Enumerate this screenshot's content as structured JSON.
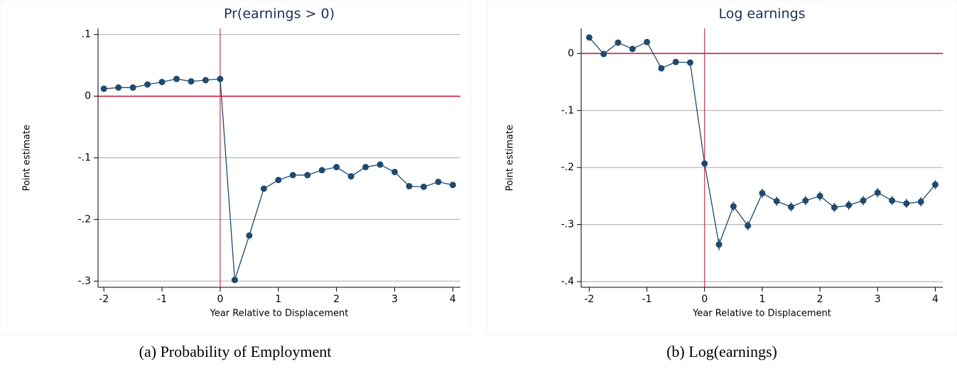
{
  "chart_data": [
    {
      "type": "line",
      "title": "Pr(earnings > 0)",
      "caption": "(a) Probability of Employment",
      "xlabel": "Year Relative to Displacement",
      "ylabel": "Point estimate",
      "x": [
        -2,
        -1.75,
        -1.5,
        -1.25,
        -1,
        -0.75,
        -0.5,
        -0.25,
        0,
        0.25,
        0.5,
        0.75,
        1,
        1.25,
        1.5,
        1.75,
        2,
        2.25,
        2.5,
        2.75,
        3,
        3.25,
        3.5,
        3.75,
        4
      ],
      "series": [
        {
          "name": "Point estimate",
          "color": "#1f4a6e",
          "values": [
            0.012,
            0.014,
            0.014,
            0.019,
            0.023,
            0.028,
            0.024,
            0.026,
            0.028,
            -0.298,
            -0.226,
            -0.15,
            -0.136,
            -0.128,
            -0.128,
            -0.12,
            -0.115,
            -0.13,
            -0.115,
            -0.111,
            -0.123,
            -0.146,
            -0.147,
            -0.139,
            -0.144
          ]
        }
      ],
      "xlim": [
        -2.1,
        4.13
      ],
      "xticks": [
        -2,
        -1,
        0,
        1,
        2,
        3,
        4
      ],
      "ylim": [
        -0.31,
        0.11
      ],
      "yticks": [
        {
          "value": 0.1,
          "label": ".1"
        },
        0,
        {
          "value": -0.1,
          "label": "-.1"
        },
        {
          "value": -0.2,
          "label": "-.2"
        },
        {
          "value": -0.3,
          "label": "-.3"
        }
      ],
      "hline": 0,
      "vline": 0,
      "ref_color": "#c8102e",
      "grid": true
    },
    {
      "type": "line",
      "title": "Log earnings",
      "caption": "(b) Log(earnings)",
      "xlabel": "Year Relative to Displacement",
      "ylabel": "Point estimate",
      "x": [
        -2,
        -1.75,
        -1.5,
        -1.25,
        -1,
        -0.75,
        -0.5,
        -0.25,
        0,
        0.25,
        0.5,
        0.75,
        1,
        1.25,
        1.5,
        1.75,
        2,
        2.25,
        2.5,
        2.75,
        3,
        3.25,
        3.5,
        3.75,
        4
      ],
      "series": [
        {
          "name": "Point estimate",
          "color": "#1f4a6e",
          "values": [
            0.028,
            -0.001,
            0.019,
            0.008,
            0.02,
            -0.026,
            -0.015,
            -0.016,
            -0.193,
            -0.335,
            -0.268,
            -0.302,
            -0.245,
            -0.259,
            -0.269,
            -0.258,
            -0.25,
            -0.27,
            -0.266,
            -0.258,
            -0.244,
            -0.258,
            -0.263,
            -0.26,
            -0.23
          ],
          "errors": [
            0.004,
            0.004,
            0.004,
            0.004,
            0.004,
            0.004,
            0.004,
            0.004,
            0.006,
            0.01,
            0.008,
            0.008,
            0.008,
            0.008,
            0.008,
            0.008,
            0.008,
            0.008,
            0.008,
            0.008,
            0.008,
            0.008,
            0.008,
            0.008,
            0.008
          ]
        }
      ],
      "xlim": [
        -2.14,
        4.13
      ],
      "xticks": [
        -2,
        -1,
        0,
        1,
        2,
        3,
        4
      ],
      "ylim": [
        -0.41,
        0.044
      ],
      "yticks": [
        0,
        {
          "value": -0.1,
          "label": "-.1"
        },
        {
          "value": -0.2,
          "label": "-.2"
        },
        {
          "value": -0.3,
          "label": "-.3"
        },
        {
          "value": -0.4,
          "label": "-.4"
        }
      ],
      "hline": 0,
      "vline": 0,
      "ref_color": "#c8102e",
      "grid": true
    }
  ]
}
